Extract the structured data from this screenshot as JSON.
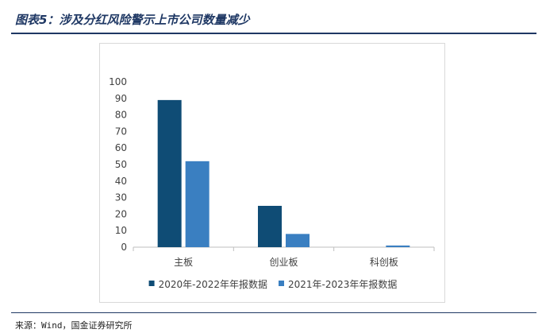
{
  "figure": {
    "title": "图表5：涉及分红风险警示上市公司数量减少",
    "source": "来源：Wind，国金证券研究所"
  },
  "chart_data": {
    "type": "bar",
    "categories": [
      "主板",
      "创业板",
      "科创板"
    ],
    "series": [
      {
        "name": "2020年-2022年年报数据",
        "values": [
          89,
          25,
          0
        ],
        "color": "#0f4c75"
      },
      {
        "name": "2021年-2023年年报数据",
        "values": [
          52,
          8,
          1
        ],
        "color": "#3a7fc1"
      }
    ],
    "ylim": [
      0,
      100
    ],
    "yticks": [
      0,
      10,
      20,
      30,
      40,
      50,
      60,
      70,
      80,
      90,
      100
    ],
    "grid": false,
    "legend_position": "bottom"
  }
}
